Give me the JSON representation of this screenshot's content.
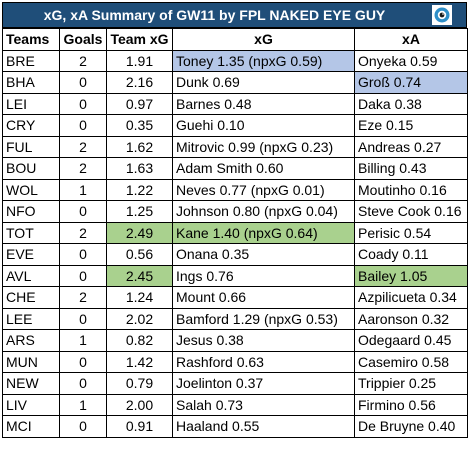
{
  "title": "xG, xA Summary of GW11 by FPL NAKED EYE GUY",
  "logo_icon": "eye-icon",
  "colors": {
    "header_bg": "#1f4e79",
    "highlight_blue": "#b4c6e7",
    "highlight_green": "#a9d18e"
  },
  "columns": [
    "Teams",
    "Goals",
    "Team xG",
    "xG",
    "xA"
  ],
  "rows": [
    {
      "team": "BRE",
      "goals": "2",
      "team_xg": "1.91",
      "xg": "Toney 1.35 (npxG 0.59)",
      "xa": "Onyeka 0.59",
      "xg_highlight": "blue"
    },
    {
      "team": "BHA",
      "goals": "0",
      "team_xg": "2.16",
      "xg": "Dunk 0.69",
      "xa": "Groß 0.74",
      "xa_highlight": "blue"
    },
    {
      "team": "LEI",
      "goals": "0",
      "team_xg": "0.97",
      "xg": "Barnes 0.48",
      "xa": "Daka 0.38"
    },
    {
      "team": "CRY",
      "goals": "0",
      "team_xg": "0.35",
      "xg": "Guehi 0.10",
      "xa": "Eze 0.15"
    },
    {
      "team": "FUL",
      "goals": "2",
      "team_xg": "1.62",
      "xg": "Mitrovic 0.99 (npxG 0.23)",
      "xa": "Andreas 0.27"
    },
    {
      "team": "BOU",
      "goals": "2",
      "team_xg": "1.63",
      "xg": "Adam Smith 0.60",
      "xa": "Billing 0.43"
    },
    {
      "team": "WOL",
      "goals": "1",
      "team_xg": "1.22",
      "xg": "Neves 0.77 (npxG 0.01)",
      "xa": "Moutinho 0.16"
    },
    {
      "team": "NFO",
      "goals": "0",
      "team_xg": "1.25",
      "xg": "Johnson 0.80 (npxG 0.04)",
      "xa": "Steve Cook 0.16"
    },
    {
      "team": "TOT",
      "goals": "2",
      "team_xg": "2.49",
      "xg": "Kane 1.40 (npxG 0.64)",
      "xa": "Perisic 0.54",
      "team_xg_highlight": "green",
      "xg_highlight": "green"
    },
    {
      "team": "EVE",
      "goals": "0",
      "team_xg": "0.56",
      "xg": "Onana 0.35",
      "xa": "Coady 0.11"
    },
    {
      "team": "AVL",
      "goals": "0",
      "team_xg": "2.45",
      "xg": "Ings 0.76",
      "xa": "Bailey 1.05",
      "team_xg_highlight": "green",
      "xa_highlight": "green"
    },
    {
      "team": "CHE",
      "goals": "2",
      "team_xg": "1.24",
      "xg": "Mount 0.66",
      "xa": "Azpilicueta 0.34"
    },
    {
      "team": "LEE",
      "goals": "0",
      "team_xg": "2.02",
      "xg": "Bamford 1.29 (npxG 0.53)",
      "xa": "Aaronson 0.32"
    },
    {
      "team": "ARS",
      "goals": "1",
      "team_xg": "0.82",
      "xg": "Jesus 0.38",
      "xa": "Odegaard 0.45"
    },
    {
      "team": "MUN",
      "goals": "0",
      "team_xg": "1.42",
      "xg": "Rashford 0.63",
      "xa": "Casemiro 0.58"
    },
    {
      "team": "NEW",
      "goals": "0",
      "team_xg": "0.79",
      "xg": "Joelinton 0.37",
      "xa": "Trippier 0.25"
    },
    {
      "team": "LIV",
      "goals": "1",
      "team_xg": "2.00",
      "xg": "Salah 0.73",
      "xa": "Firmino 0.56"
    },
    {
      "team": "MCI",
      "goals": "0",
      "team_xg": "0.91",
      "xg": "Haaland 0.55",
      "xa": "De Bruyne 0.40"
    }
  ]
}
